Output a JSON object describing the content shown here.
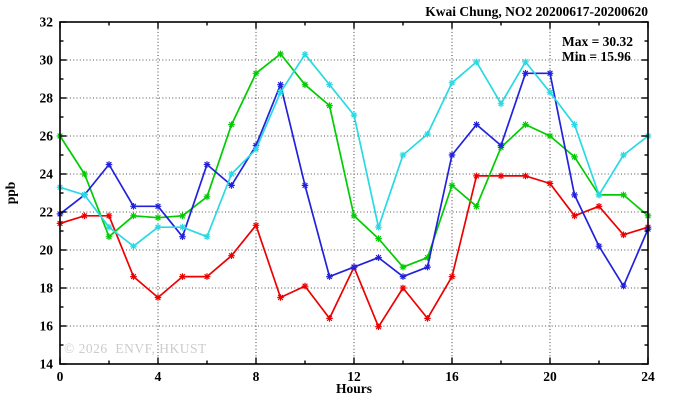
{
  "header": {
    "title": "Kwai Chung, NO2 20200617-20200620"
  },
  "stats": {
    "max_label": "Max = 30.32",
    "min_label": "Min = 15.96"
  },
  "watermark": "© 2026  ENVF, HKUST",
  "axes": {
    "ylabel": "ppb",
    "xlabel": "Hours"
  },
  "chart_data": {
    "type": "line",
    "title": "Kwai Chung, NO2 20200617-20200620",
    "xlabel": "Hours",
    "ylabel": "ppb",
    "xlim": [
      0,
      24
    ],
    "ylim": [
      14,
      32
    ],
    "x_ticks": [
      0,
      4,
      8,
      12,
      16,
      20,
      24
    ],
    "x_minor_ticks": [
      2,
      6,
      10,
      14,
      18,
      22
    ],
    "y_ticks": [
      14,
      16,
      18,
      20,
      22,
      24,
      26,
      28,
      30,
      32
    ],
    "y_minor_ticks": [
      15,
      17,
      19,
      21,
      23,
      25,
      27,
      29,
      31
    ],
    "grid": true,
    "legend_position": "none",
    "annotations": [
      "Max = 30.32",
      "Min = 15.96"
    ],
    "max": 30.32,
    "min": 15.96,
    "x": [
      0,
      1,
      2,
      3,
      4,
      5,
      6,
      7,
      8,
      9,
      10,
      11,
      12,
      13,
      14,
      15,
      16,
      17,
      18,
      19,
      20,
      21,
      22,
      23,
      24
    ],
    "series": [
      {
        "name": "series-red",
        "color": "#ee0000",
        "values": [
          21.4,
          21.8,
          21.8,
          18.6,
          17.5,
          18.6,
          18.6,
          19.7,
          21.3,
          17.5,
          18.1,
          16.4,
          19.1,
          15.96,
          18.0,
          16.4,
          18.6,
          23.9,
          23.9,
          23.9,
          23.5,
          21.8,
          22.3,
          20.8,
          21.2
        ]
      },
      {
        "name": "series-green",
        "color": "#00cc00",
        "values": [
          26.0,
          24.0,
          20.7,
          21.8,
          21.7,
          21.8,
          22.8,
          26.6,
          29.3,
          30.32,
          28.7,
          27.6,
          21.8,
          20.6,
          19.1,
          19.6,
          23.4,
          22.3,
          25.4,
          26.6,
          26.0,
          24.9,
          22.9,
          22.9,
          21.8
        ]
      },
      {
        "name": "series-blue",
        "color": "#2222dd",
        "values": [
          21.9,
          22.9,
          24.5,
          22.3,
          22.3,
          20.7,
          24.5,
          23.4,
          25.5,
          28.7,
          23.4,
          18.6,
          19.1,
          19.6,
          18.6,
          19.1,
          25.0,
          26.6,
          25.5,
          29.3,
          29.3,
          22.9,
          20.2,
          18.1,
          21.1
        ]
      },
      {
        "name": "series-cyan",
        "color": "#29d9e3",
        "values": [
          23.3,
          22.9,
          21.2,
          20.2,
          21.2,
          21.2,
          20.7,
          24.0,
          25.3,
          28.3,
          30.3,
          28.7,
          27.1,
          21.2,
          25.0,
          26.1,
          28.8,
          29.9,
          27.7,
          29.9,
          28.3,
          26.6,
          22.9,
          25.0,
          26.0
        ]
      }
    ]
  }
}
